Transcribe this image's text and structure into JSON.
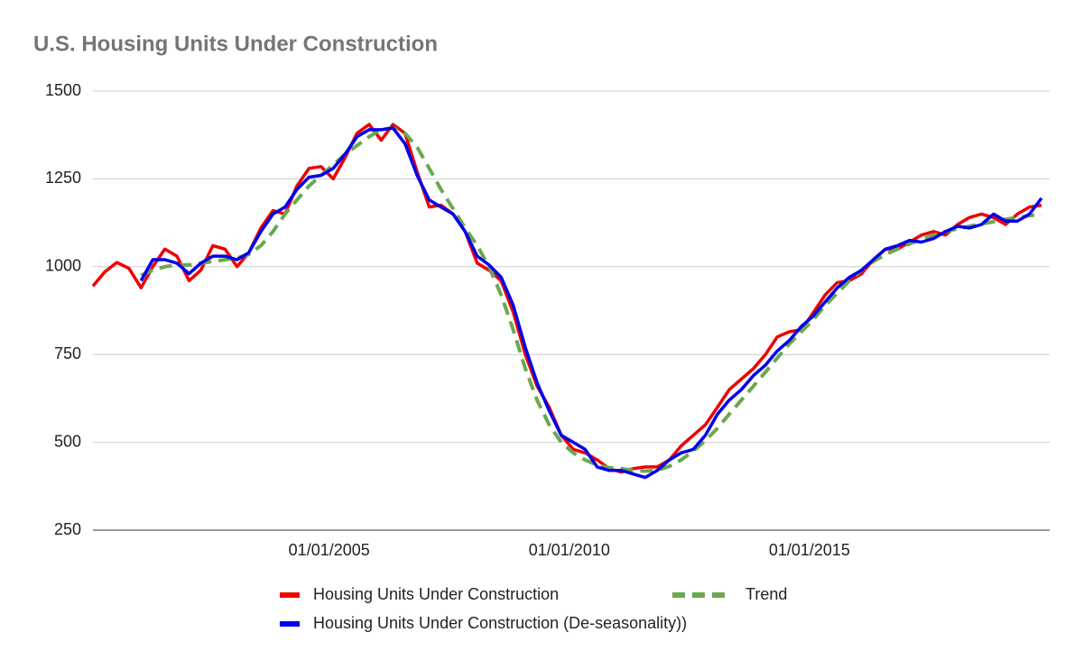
{
  "chart_data": {
    "type": "line",
    "title": "U.S. Housing Units Under Construction",
    "x": [
      "2000-02-01",
      "2000-05-01",
      "2000-08-01",
      "2000-11-01",
      "2001-02-01",
      "2001-05-01",
      "2001-08-01",
      "2001-11-01",
      "2002-02-01",
      "2002-05-01",
      "2002-08-01",
      "2002-11-01",
      "2003-02-01",
      "2003-05-01",
      "2003-08-01",
      "2003-11-01",
      "2004-02-01",
      "2004-05-01",
      "2004-08-01",
      "2004-11-01",
      "2005-02-01",
      "2005-05-01",
      "2005-08-01",
      "2005-11-01",
      "2006-02-01",
      "2006-05-01",
      "2006-08-01",
      "2006-11-01",
      "2007-02-01",
      "2007-05-01",
      "2007-08-01",
      "2007-11-01",
      "2008-02-01",
      "2008-05-01",
      "2008-08-01",
      "2008-11-01",
      "2009-02-01",
      "2009-05-01",
      "2009-08-01",
      "2009-11-01",
      "2010-02-01",
      "2010-05-01",
      "2010-08-01",
      "2010-11-01",
      "2011-02-01",
      "2011-05-01",
      "2011-08-01",
      "2011-11-01",
      "2012-02-01",
      "2012-05-01",
      "2012-08-01",
      "2012-11-01",
      "2013-02-01",
      "2013-05-01",
      "2013-08-01",
      "2013-11-01",
      "2014-02-01",
      "2014-05-01",
      "2014-08-01",
      "2014-11-01",
      "2015-02-01",
      "2015-05-01",
      "2015-08-01",
      "2015-11-01",
      "2016-02-01",
      "2016-05-01",
      "2016-08-01",
      "2016-11-01",
      "2017-02-01",
      "2017-05-01",
      "2017-08-01",
      "2017-11-01",
      "2018-02-01",
      "2018-05-01",
      "2018-08-01",
      "2018-11-01",
      "2019-02-01",
      "2019-05-01",
      "2019-08-01",
      "2019-11-01"
    ],
    "series": [
      {
        "name": "Housing Units Under Construction",
        "color": "#ee0000",
        "line_style": "solid",
        "values": [
          945,
          985,
          1012,
          995,
          940,
          1000,
          1050,
          1030,
          960,
          990,
          1060,
          1050,
          1000,
          1040,
          1110,
          1160,
          1150,
          1230,
          1280,
          1285,
          1250,
          1310,
          1380,
          1405,
          1360,
          1405,
          1380,
          1270,
          1170,
          1175,
          1150,
          1100,
          1010,
          990,
          960,
          870,
          750,
          660,
          600,
          520,
          480,
          470,
          450,
          425,
          415,
          425,
          430,
          430,
          450,
          490,
          520,
          550,
          600,
          650,
          680,
          710,
          750,
          800,
          815,
          820,
          870,
          920,
          955,
          960,
          980,
          1020,
          1050,
          1050,
          1070,
          1090,
          1100,
          1090,
          1120,
          1140,
          1150,
          1140,
          1120,
          1150,
          1170,
          1175
        ]
      },
      {
        "name": "Trend",
        "color": "#6aa84f",
        "line_style": "dashed",
        "values": [
          null,
          null,
          null,
          null,
          975,
          990,
          1000,
          1005,
          1005,
          1010,
          1015,
          1020,
          1025,
          1035,
          1060,
          1100,
          1150,
          1190,
          1230,
          1260,
          1290,
          1320,
          1345,
          1370,
          1390,
          1395,
          1380,
          1340,
          1280,
          1220,
          1165,
          1110,
          1060,
          1000,
          920,
          820,
          710,
          620,
          550,
          500,
          470,
          450,
          435,
          428,
          425,
          420,
          418,
          420,
          432,
          450,
          475,
          505,
          540,
          580,
          620,
          660,
          700,
          740,
          780,
          815,
          850,
          890,
          925,
          960,
          990,
          1015,
          1035,
          1050,
          1065,
          1078,
          1090,
          1100,
          1108,
          1115,
          1122,
          1128,
          1135,
          1140,
          1145,
          1150
        ]
      },
      {
        "name": "Housing Units Under Construction (De-seasonality))",
        "color": "#0000ee",
        "line_style": "solid",
        "values": [
          null,
          null,
          null,
          null,
          960,
          1020,
          1020,
          1010,
          980,
          1010,
          1030,
          1030,
          1020,
          1040,
          1100,
          1150,
          1170,
          1220,
          1255,
          1260,
          1280,
          1320,
          1370,
          1390,
          1390,
          1395,
          1350,
          1260,
          1190,
          1170,
          1150,
          1100,
          1030,
          1005,
          970,
          890,
          770,
          670,
          590,
          520,
          500,
          480,
          430,
          420,
          420,
          410,
          400,
          420,
          450,
          470,
          480,
          520,
          580,
          620,
          650,
          690,
          720,
          760,
          790,
          830,
          860,
          900,
          940,
          970,
          990,
          1020,
          1050,
          1060,
          1075,
          1070,
          1080,
          1100,
          1115,
          1110,
          1120,
          1150,
          1130,
          1130,
          1150,
          1195
        ]
      }
    ],
    "xlim": [
      "2000-02-01",
      "2020-01-01"
    ],
    "xticks": [
      {
        "value": "2005-01-01",
        "label": "01/01/2005"
      },
      {
        "value": "2010-01-01",
        "label": "01/01/2010"
      },
      {
        "value": "2015-01-01",
        "label": "01/01/2015"
      }
    ],
    "ylim": [
      250,
      1500
    ],
    "yticks": [
      250,
      500,
      750,
      1000,
      1250,
      1500
    ],
    "grid": true,
    "legend": "bottom"
  }
}
